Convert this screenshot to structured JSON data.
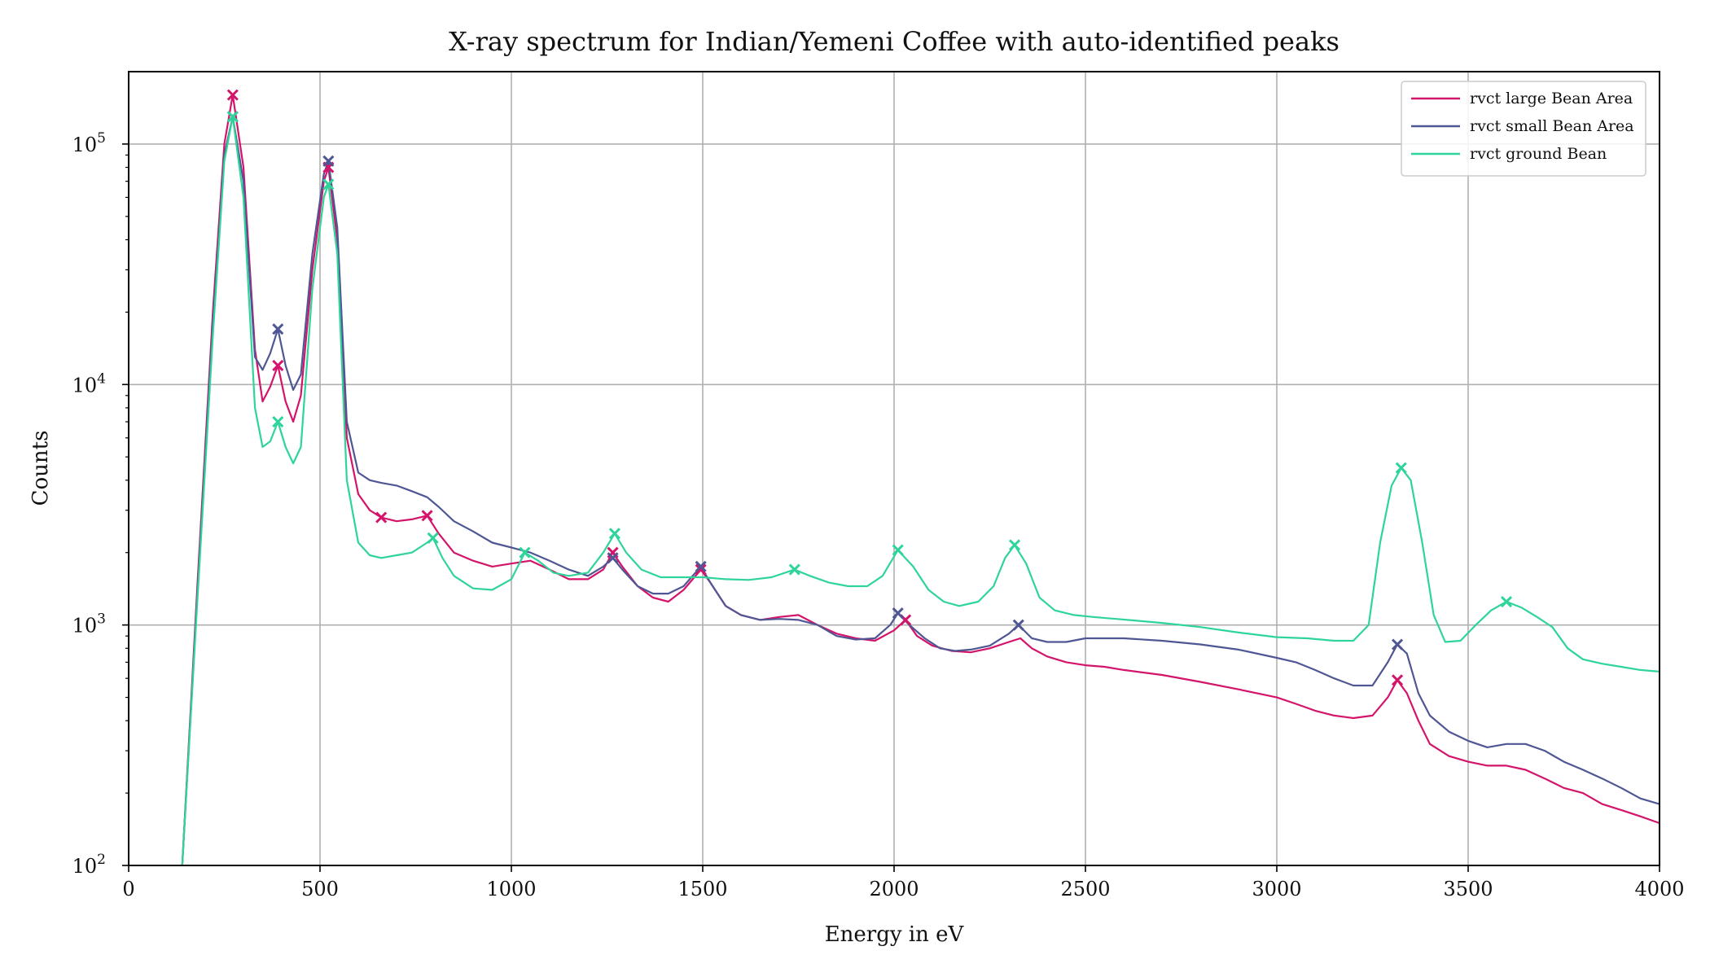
{
  "chart_data": {
    "type": "line",
    "title": "X-ray spectrum for Indian/Yemeni Coffee with auto-identified peaks",
    "xlabel": "Energy in eV",
    "ylabel": "Counts",
    "xlim": [
      0,
      4000
    ],
    "ylim": [
      100,
      200000
    ],
    "yscale": "log",
    "grid": true,
    "legend_position": "top-right",
    "x_ticks": [
      0,
      500,
      1000,
      1500,
      2000,
      2500,
      3000,
      3500,
      4000
    ],
    "x_tick_labels": [
      "0",
      "500",
      "1000",
      "1500",
      "2000",
      "2500",
      "3000",
      "3500",
      "4000"
    ],
    "y_ticks": [
      100,
      1000,
      10000,
      100000
    ],
    "y_tick_labels": [
      {
        "base": "10",
        "exp": "2"
      },
      {
        "base": "10",
        "exp": "3"
      },
      {
        "base": "10",
        "exp": "4"
      },
      {
        "base": "10",
        "exp": "5"
      }
    ],
    "series": [
      {
        "name": "rvct large Bean Area",
        "color": "#d4146a",
        "points": [
          [
            140,
            100
          ],
          [
            180,
            1500
          ],
          [
            220,
            20000
          ],
          [
            250,
            100000
          ],
          [
            272,
            160000
          ],
          [
            300,
            80000
          ],
          [
            330,
            14000
          ],
          [
            350,
            8500
          ],
          [
            370,
            9800
          ],
          [
            390,
            12000
          ],
          [
            410,
            8500
          ],
          [
            430,
            7000
          ],
          [
            450,
            9000
          ],
          [
            480,
            30000
          ],
          [
            510,
            70000
          ],
          [
            522,
            80000
          ],
          [
            545,
            40000
          ],
          [
            570,
            6000
          ],
          [
            600,
            3500
          ],
          [
            630,
            3000
          ],
          [
            660,
            2800
          ],
          [
            700,
            2700
          ],
          [
            740,
            2750
          ],
          [
            780,
            2850
          ],
          [
            810,
            2400
          ],
          [
            850,
            2000
          ],
          [
            900,
            1850
          ],
          [
            950,
            1750
          ],
          [
            1000,
            1800
          ],
          [
            1050,
            1850
          ],
          [
            1100,
            1700
          ],
          [
            1150,
            1550
          ],
          [
            1200,
            1550
          ],
          [
            1240,
            1700
          ],
          [
            1265,
            2000
          ],
          [
            1290,
            1750
          ],
          [
            1330,
            1450
          ],
          [
            1370,
            1300
          ],
          [
            1410,
            1250
          ],
          [
            1450,
            1400
          ],
          [
            1495,
            1700
          ],
          [
            1520,
            1500
          ],
          [
            1560,
            1200
          ],
          [
            1600,
            1100
          ],
          [
            1650,
            1050
          ],
          [
            1700,
            1080
          ],
          [
            1750,
            1100
          ],
          [
            1800,
            1000
          ],
          [
            1850,
            920
          ],
          [
            1900,
            880
          ],
          [
            1950,
            860
          ],
          [
            2000,
            950
          ],
          [
            2030,
            1050
          ],
          [
            2060,
            900
          ],
          [
            2100,
            820
          ],
          [
            2150,
            780
          ],
          [
            2200,
            770
          ],
          [
            2250,
            800
          ],
          [
            2300,
            850
          ],
          [
            2330,
            880
          ],
          [
            2360,
            800
          ],
          [
            2400,
            740
          ],
          [
            2450,
            700
          ],
          [
            2500,
            680
          ],
          [
            2550,
            670
          ],
          [
            2600,
            650
          ],
          [
            2700,
            620
          ],
          [
            2800,
            580
          ],
          [
            2900,
            540
          ],
          [
            3000,
            500
          ],
          [
            3050,
            470
          ],
          [
            3100,
            440
          ],
          [
            3150,
            420
          ],
          [
            3200,
            410
          ],
          [
            3250,
            420
          ],
          [
            3290,
            500
          ],
          [
            3315,
            590
          ],
          [
            3340,
            520
          ],
          [
            3370,
            400
          ],
          [
            3400,
            320
          ],
          [
            3450,
            285
          ],
          [
            3500,
            270
          ],
          [
            3550,
            260
          ],
          [
            3600,
            260
          ],
          [
            3650,
            250
          ],
          [
            3700,
            230
          ],
          [
            3750,
            210
          ],
          [
            3800,
            200
          ],
          [
            3850,
            180
          ],
          [
            3900,
            170
          ],
          [
            3950,
            160
          ],
          [
            4000,
            150
          ]
        ]
      },
      {
        "name": "rvct small Bean Area",
        "color": "#4e5793",
        "points": [
          [
            140,
            100
          ],
          [
            180,
            1400
          ],
          [
            220,
            18000
          ],
          [
            250,
            90000
          ],
          [
            272,
            130000
          ],
          [
            300,
            70000
          ],
          [
            330,
            13000
          ],
          [
            350,
            11500
          ],
          [
            370,
            13500
          ],
          [
            390,
            17000
          ],
          [
            410,
            12000
          ],
          [
            430,
            9500
          ],
          [
            450,
            11000
          ],
          [
            480,
            35000
          ],
          [
            510,
            75000
          ],
          [
            522,
            85000
          ],
          [
            545,
            45000
          ],
          [
            570,
            7000
          ],
          [
            600,
            4300
          ],
          [
            630,
            4000
          ],
          [
            660,
            3900
          ],
          [
            700,
            3800
          ],
          [
            740,
            3600
          ],
          [
            780,
            3400
          ],
          [
            810,
            3100
          ],
          [
            850,
            2700
          ],
          [
            900,
            2450
          ],
          [
            950,
            2200
          ],
          [
            1000,
            2100
          ],
          [
            1050,
            2000
          ],
          [
            1100,
            1850
          ],
          [
            1150,
            1700
          ],
          [
            1200,
            1600
          ],
          [
            1240,
            1750
          ],
          [
            1265,
            1900
          ],
          [
            1290,
            1700
          ],
          [
            1330,
            1450
          ],
          [
            1370,
            1350
          ],
          [
            1410,
            1350
          ],
          [
            1450,
            1450
          ],
          [
            1495,
            1750
          ],
          [
            1520,
            1500
          ],
          [
            1560,
            1200
          ],
          [
            1600,
            1100
          ],
          [
            1650,
            1050
          ],
          [
            1700,
            1060
          ],
          [
            1750,
            1050
          ],
          [
            1800,
            1000
          ],
          [
            1850,
            900
          ],
          [
            1900,
            870
          ],
          [
            1950,
            880
          ],
          [
            1990,
            1000
          ],
          [
            2010,
            1120
          ],
          [
            2040,
            1000
          ],
          [
            2080,
            880
          ],
          [
            2120,
            800
          ],
          [
            2160,
            780
          ],
          [
            2200,
            790
          ],
          [
            2250,
            820
          ],
          [
            2300,
            920
          ],
          [
            2325,
            1000
          ],
          [
            2360,
            880
          ],
          [
            2400,
            850
          ],
          [
            2450,
            850
          ],
          [
            2500,
            880
          ],
          [
            2550,
            880
          ],
          [
            2600,
            880
          ],
          [
            2700,
            860
          ],
          [
            2800,
            830
          ],
          [
            2900,
            790
          ],
          [
            3000,
            730
          ],
          [
            3050,
            700
          ],
          [
            3100,
            650
          ],
          [
            3150,
            600
          ],
          [
            3200,
            560
          ],
          [
            3250,
            560
          ],
          [
            3290,
            700
          ],
          [
            3315,
            830
          ],
          [
            3340,
            760
          ],
          [
            3370,
            520
          ],
          [
            3400,
            420
          ],
          [
            3450,
            360
          ],
          [
            3500,
            330
          ],
          [
            3550,
            310
          ],
          [
            3600,
            320
          ],
          [
            3650,
            320
          ],
          [
            3700,
            300
          ],
          [
            3750,
            270
          ],
          [
            3800,
            250
          ],
          [
            3850,
            230
          ],
          [
            3900,
            210
          ],
          [
            3950,
            190
          ],
          [
            4000,
            180
          ]
        ]
      },
      {
        "name": "rvct ground Bean",
        "color": "#2fd49a",
        "points": [
          [
            140,
            100
          ],
          [
            180,
            1300
          ],
          [
            220,
            16000
          ],
          [
            250,
            85000
          ],
          [
            272,
            130000
          ],
          [
            300,
            60000
          ],
          [
            330,
            8000
          ],
          [
            350,
            5500
          ],
          [
            370,
            5800
          ],
          [
            390,
            7000
          ],
          [
            410,
            5500
          ],
          [
            430,
            4700
          ],
          [
            450,
            5500
          ],
          [
            480,
            25000
          ],
          [
            510,
            60000
          ],
          [
            522,
            68000
          ],
          [
            545,
            35000
          ],
          [
            570,
            4000
          ],
          [
            600,
            2200
          ],
          [
            630,
            1950
          ],
          [
            660,
            1900
          ],
          [
            700,
            1950
          ],
          [
            740,
            2000
          ],
          [
            780,
            2200
          ],
          [
            795,
            2300
          ],
          [
            820,
            1900
          ],
          [
            850,
            1600
          ],
          [
            900,
            1420
          ],
          [
            950,
            1400
          ],
          [
            1000,
            1550
          ],
          [
            1035,
            2000
          ],
          [
            1070,
            1850
          ],
          [
            1110,
            1650
          ],
          [
            1150,
            1600
          ],
          [
            1200,
            1650
          ],
          [
            1240,
            2000
          ],
          [
            1270,
            2400
          ],
          [
            1300,
            2000
          ],
          [
            1340,
            1700
          ],
          [
            1390,
            1580
          ],
          [
            1440,
            1580
          ],
          [
            1500,
            1580
          ],
          [
            1560,
            1550
          ],
          [
            1620,
            1540
          ],
          [
            1680,
            1580
          ],
          [
            1740,
            1700
          ],
          [
            1780,
            1600
          ],
          [
            1830,
            1500
          ],
          [
            1880,
            1450
          ],
          [
            1930,
            1450
          ],
          [
            1970,
            1600
          ],
          [
            2010,
            2050
          ],
          [
            2050,
            1750
          ],
          [
            2090,
            1400
          ],
          [
            2130,
            1250
          ],
          [
            2170,
            1200
          ],
          [
            2220,
            1250
          ],
          [
            2260,
            1450
          ],
          [
            2290,
            1900
          ],
          [
            2315,
            2150
          ],
          [
            2345,
            1800
          ],
          [
            2380,
            1300
          ],
          [
            2420,
            1150
          ],
          [
            2470,
            1100
          ],
          [
            2520,
            1080
          ],
          [
            2580,
            1060
          ],
          [
            2640,
            1040
          ],
          [
            2700,
            1020
          ],
          [
            2800,
            980
          ],
          [
            2900,
            930
          ],
          [
            3000,
            890
          ],
          [
            3080,
            880
          ],
          [
            3150,
            860
          ],
          [
            3200,
            860
          ],
          [
            3240,
            1000
          ],
          [
            3270,
            2200
          ],
          [
            3300,
            3800
          ],
          [
            3325,
            4500
          ],
          [
            3350,
            4000
          ],
          [
            3380,
            2200
          ],
          [
            3410,
            1100
          ],
          [
            3440,
            850
          ],
          [
            3480,
            860
          ],
          [
            3520,
            1000
          ],
          [
            3560,
            1150
          ],
          [
            3600,
            1250
          ],
          [
            3640,
            1180
          ],
          [
            3680,
            1080
          ],
          [
            3720,
            980
          ],
          [
            3760,
            800
          ],
          [
            3800,
            720
          ],
          [
            3850,
            690
          ],
          [
            3900,
            670
          ],
          [
            3950,
            650
          ],
          [
            4000,
            640
          ]
        ]
      }
    ],
    "peaks": [
      {
        "series": "rvct large Bean Area",
        "points": [
          [
            272,
            160000
          ],
          [
            390,
            12000
          ],
          [
            522,
            80000
          ],
          [
            660,
            2800
          ],
          [
            780,
            2850
          ],
          [
            1265,
            2000
          ],
          [
            1495,
            1700
          ],
          [
            2030,
            1050
          ],
          [
            3315,
            590
          ]
        ]
      },
      {
        "series": "rvct small Bean Area",
        "points": [
          [
            272,
            130000
          ],
          [
            390,
            17000
          ],
          [
            522,
            85000
          ],
          [
            1265,
            1900
          ],
          [
            1495,
            1750
          ],
          [
            2010,
            1120
          ],
          [
            2325,
            1000
          ],
          [
            3315,
            830
          ]
        ]
      },
      {
        "series": "rvct ground Bean",
        "points": [
          [
            272,
            130000
          ],
          [
            390,
            7000
          ],
          [
            522,
            68000
          ],
          [
            795,
            2300
          ],
          [
            1035,
            2000
          ],
          [
            1270,
            2400
          ],
          [
            1740,
            1700
          ],
          [
            2010,
            2050
          ],
          [
            2315,
            2150
          ],
          [
            3325,
            4500
          ],
          [
            3600,
            1250
          ]
        ]
      }
    ]
  }
}
